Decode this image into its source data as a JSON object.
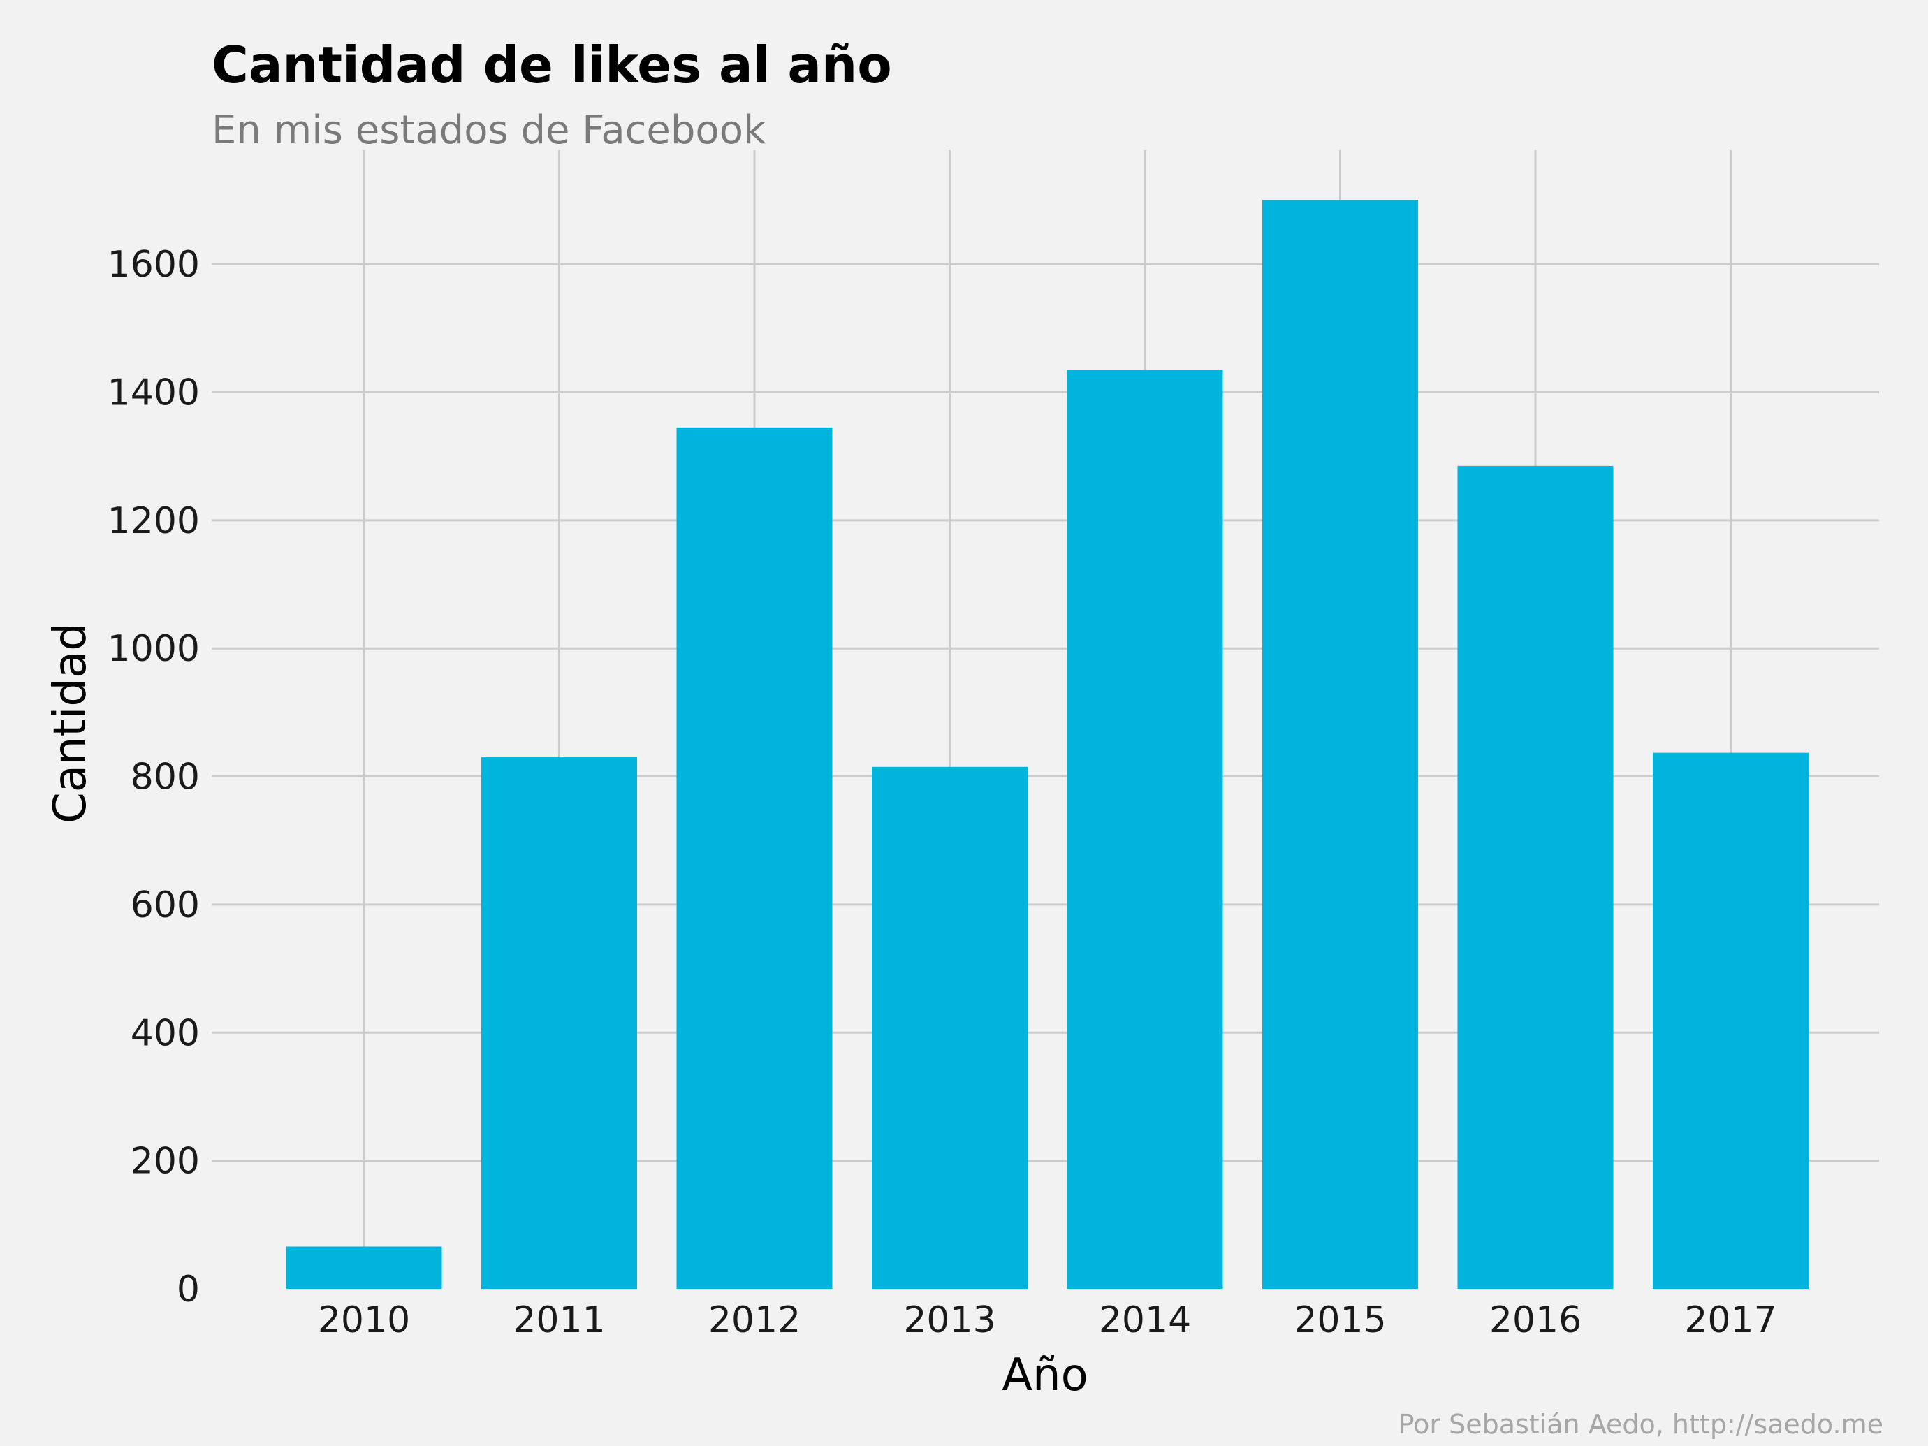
{
  "chart_data": {
    "type": "bar",
    "title": "Cantidad de likes al año",
    "subtitle": "En mis estados de Facebook",
    "xlabel": "Año",
    "ylabel": "Cantidad",
    "caption": "Por Sebastián Aedo, http://saedo.me",
    "categories": [
      "2010",
      "2011",
      "2012",
      "2013",
      "2014",
      "2015",
      "2016",
      "2017"
    ],
    "values": [
      66,
      830,
      1345,
      815,
      1435,
      1700,
      1285,
      837
    ],
    "yticks": [
      0,
      200,
      400,
      600,
      800,
      1000,
      1200,
      1400,
      1600
    ],
    "ylim": [
      0,
      1780
    ],
    "grid": true,
    "legend": "none",
    "bar_color": "#00b4dd",
    "background_color": "#f2f2f2",
    "grid_color": "#cbcbcb"
  }
}
